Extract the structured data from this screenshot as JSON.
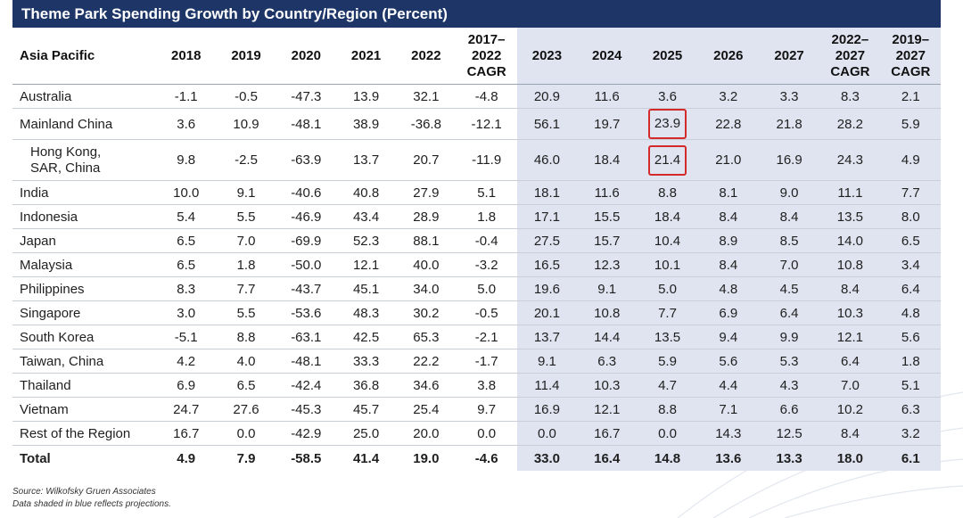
{
  "title": "Theme Park Spending Growth by Country/Region (Percent)",
  "chart_data": {
    "type": "table",
    "title": "Theme Park Spending Growth by Country/Region (Percent)",
    "columns": [
      "Asia Pacific",
      "2018",
      "2019",
      "2020",
      "2021",
      "2022",
      "2017–2022 CAGR",
      "2023",
      "2024",
      "2025",
      "2026",
      "2027",
      "2022–2027 CAGR",
      "2019–2027 CAGR"
    ],
    "projected_columns": [
      "2023",
      "2024",
      "2025",
      "2026",
      "2027",
      "2022–2027 CAGR",
      "2019–2027 CAGR"
    ],
    "rows": [
      {
        "region": "Australia",
        "values": [
          "-1.1",
          "-0.5",
          "-47.3",
          "13.9",
          "32.1",
          "-4.8",
          "20.9",
          "11.6",
          "3.6",
          "3.2",
          "3.3",
          "8.3",
          "2.1"
        ]
      },
      {
        "region": "Mainland China",
        "values": [
          "3.6",
          "10.9",
          "-48.1",
          "38.9",
          "-36.8",
          "-12.1",
          "56.1",
          "19.7",
          "23.9",
          "22.8",
          "21.8",
          "28.2",
          "5.9"
        ]
      },
      {
        "region": "Hong Kong, SAR, China",
        "values": [
          "9.8",
          "-2.5",
          "-63.9",
          "13.7",
          "20.7",
          "-11.9",
          "46.0",
          "18.4",
          "21.4",
          "21.0",
          "16.9",
          "24.3",
          "4.9"
        ]
      },
      {
        "region": "India",
        "values": [
          "10.0",
          "9.1",
          "-40.6",
          "40.8",
          "27.9",
          "5.1",
          "18.1",
          "11.6",
          "8.8",
          "8.1",
          "9.0",
          "11.1",
          "7.7"
        ]
      },
      {
        "region": "Indonesia",
        "values": [
          "5.4",
          "5.5",
          "-46.9",
          "43.4",
          "28.9",
          "1.8",
          "17.1",
          "15.5",
          "18.4",
          "8.4",
          "8.4",
          "13.5",
          "8.0"
        ]
      },
      {
        "region": "Japan",
        "values": [
          "6.5",
          "7.0",
          "-69.9",
          "52.3",
          "88.1",
          "-0.4",
          "27.5",
          "15.7",
          "10.4",
          "8.9",
          "8.5",
          "14.0",
          "6.5"
        ]
      },
      {
        "region": "Malaysia",
        "values": [
          "6.5",
          "1.8",
          "-50.0",
          "12.1",
          "40.0",
          "-3.2",
          "16.5",
          "12.3",
          "10.1",
          "8.4",
          "7.0",
          "10.8",
          "3.4"
        ]
      },
      {
        "region": "Philippines",
        "values": [
          "8.3",
          "7.7",
          "-43.7",
          "45.1",
          "34.0",
          "5.0",
          "19.6",
          "9.1",
          "5.0",
          "4.8",
          "4.5",
          "8.4",
          "6.4"
        ]
      },
      {
        "region": "Singapore",
        "values": [
          "3.0",
          "5.5",
          "-53.6",
          "48.3",
          "30.2",
          "-0.5",
          "20.1",
          "10.8",
          "7.7",
          "6.9",
          "6.4",
          "10.3",
          "4.8"
        ]
      },
      {
        "region": "South Korea",
        "values": [
          "-5.1",
          "8.8",
          "-63.1",
          "42.5",
          "65.3",
          "-2.1",
          "13.7",
          "14.4",
          "13.5",
          "9.4",
          "9.9",
          "12.1",
          "5.6"
        ]
      },
      {
        "region": "Taiwan, China",
        "values": [
          "4.2",
          "4.0",
          "-48.1",
          "33.3",
          "22.2",
          "-1.7",
          "9.1",
          "6.3",
          "5.9",
          "5.6",
          "5.3",
          "6.4",
          "1.8"
        ]
      },
      {
        "region": "Thailand",
        "values": [
          "6.9",
          "6.5",
          "-42.4",
          "36.8",
          "34.6",
          "3.8",
          "11.4",
          "10.3",
          "4.7",
          "4.4",
          "4.3",
          "7.0",
          "5.1"
        ]
      },
      {
        "region": "Vietnam",
        "values": [
          "24.7",
          "27.6",
          "-45.3",
          "45.7",
          "25.4",
          "9.7",
          "16.9",
          "12.1",
          "8.8",
          "7.1",
          "6.6",
          "10.2",
          "6.3"
        ]
      },
      {
        "region": "Rest of the Region",
        "values": [
          "16.7",
          "0.0",
          "-42.9",
          "25.0",
          "20.0",
          "0.0",
          "0.0",
          "16.7",
          "0.0",
          "14.3",
          "12.5",
          "8.4",
          "3.2"
        ]
      },
      {
        "region": "Total",
        "values": [
          "4.9",
          "7.9",
          "-58.5",
          "41.4",
          "19.0",
          "-4.6",
          "33.0",
          "16.4",
          "14.8",
          "13.6",
          "13.3",
          "18.0",
          "6.1"
        ]
      }
    ],
    "highlighted_cells": [
      {
        "region": "Mainland China",
        "column": "2025",
        "value": "23.9"
      },
      {
        "region": "Hong Kong, SAR, China",
        "column": "2025",
        "value": "21.4"
      }
    ]
  },
  "header": {
    "region": "Asia Pacific",
    "y2018": "2018",
    "y2019": "2019",
    "y2020": "2020",
    "y2021": "2021",
    "y2022": "2022",
    "cagr1_l1": "2017–",
    "cagr1_l2": "2022",
    "cagr1_l3": "CAGR",
    "y2023": "2023",
    "y2024": "2024",
    "y2025": "2025",
    "y2026": "2026",
    "y2027": "2027",
    "cagr2_l1": "2022–",
    "cagr2_l2": "2027",
    "cagr2_l3": "CAGR",
    "cagr3_l1": "2019–",
    "cagr3_l2": "2027",
    "cagr3_l3": "CAGR"
  },
  "hk_label": {
    "line1": "Hong Kong,",
    "line2": "SAR, China"
  },
  "highlight_color": "#d42a2a",
  "projection_shade_color": "#dfe4f0",
  "title_bar_color": "#1d3667",
  "source": {
    "line1": "Source: Wilkofsky Gruen Associates",
    "line2": "Data shaded in blue reflects projections."
  }
}
